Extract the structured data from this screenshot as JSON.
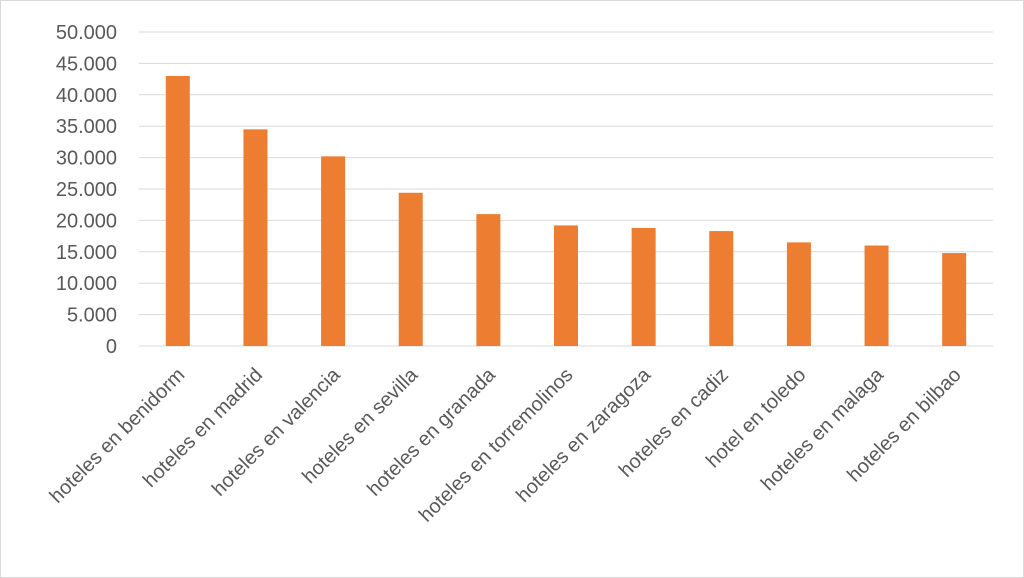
{
  "chart_data": {
    "type": "bar",
    "title": "",
    "xlabel": "",
    "ylabel": "",
    "categories": [
      "hoteles en benidorm",
      "hoteles en madrid",
      "hoteles en valencia",
      "hoteles en sevilla",
      "hoteles en granada",
      "hoteles en torremolinos",
      "hoteles en zaragoza",
      "hoteles en cadiz",
      "hotel en toledo",
      "hoteles en malaga",
      "hoteles en bilbao"
    ],
    "values": [
      43000,
      34500,
      30200,
      24400,
      21000,
      19200,
      18800,
      18300,
      16500,
      16000,
      14800
    ],
    "ylim": [
      0,
      50000
    ],
    "yticks": [
      0,
      5000,
      10000,
      15000,
      20000,
      25000,
      30000,
      35000,
      40000,
      45000,
      50000
    ],
    "ytick_labels": [
      "0",
      "5.000",
      "10.000",
      "15.000",
      "20.000",
      "25.000",
      "30.000",
      "35.000",
      "40.000",
      "45.000",
      "50.000"
    ],
    "grid": true,
    "legend": "none",
    "bar_color": "#ED7D31",
    "grid_color": "#D9D9D9"
  }
}
